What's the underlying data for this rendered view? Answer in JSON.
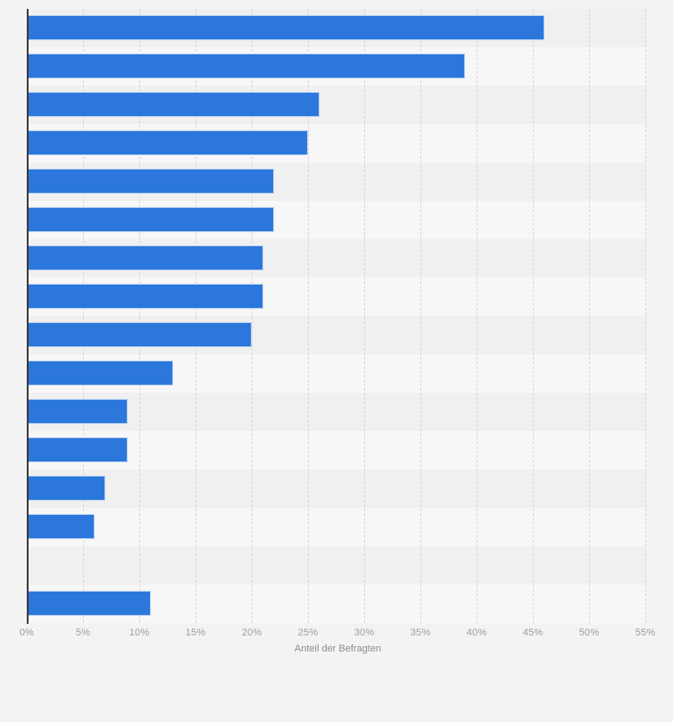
{
  "page": {
    "background_color": "#f3f3f3"
  },
  "chart_data": {
    "type": "bar",
    "orientation": "horizontal",
    "title": "",
    "xlabel": "Anteil der Befragten",
    "ylabel": "",
    "unit": "%",
    "xlim": [
      0,
      55
    ],
    "x_tick_step": 5,
    "x_ticks": [
      "0%",
      "5%",
      "10%",
      "15%",
      "20%",
      "25%",
      "30%",
      "35%",
      "40%",
      "45%",
      "50%",
      "55%"
    ],
    "categories": [
      "",
      "",
      "",
      "",
      "",
      "",
      "",
      "",
      "",
      "",
      "",
      "",
      "",
      "",
      "",
      ""
    ],
    "values": [
      46,
      39,
      26,
      25,
      22,
      22,
      21,
      21,
      20,
      13,
      9,
      9,
      7,
      6,
      0,
      11
    ],
    "legend": "none",
    "grid": "vertical-dashed",
    "bar_color": "#2b77dc",
    "row_stripe_colors": [
      "#f0f0f0",
      "#f7f7f7"
    ],
    "gridline_color": "#d6d6d6",
    "axis_line_color": "#3a3a3a",
    "tick_label_color": "#9c9c9c",
    "axis_title_color": "#8d8d8d"
  }
}
